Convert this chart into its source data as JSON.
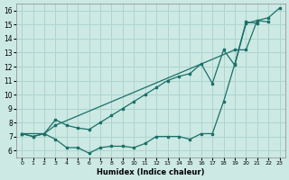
{
  "background_color": "#cce9e4",
  "grid_color": "#aed4ce",
  "line_color": "#1b7068",
  "xlabel": "Humidex (Indice chaleur)",
  "xlim": [
    -0.5,
    23.5
  ],
  "ylim": [
    5.5,
    16.5
  ],
  "xticks": [
    0,
    1,
    2,
    3,
    4,
    5,
    6,
    7,
    8,
    9,
    10,
    11,
    12,
    13,
    14,
    15,
    16,
    17,
    18,
    19,
    20,
    21,
    22,
    23
  ],
  "yticks": [
    6,
    7,
    8,
    9,
    10,
    11,
    12,
    13,
    14,
    15,
    16
  ],
  "line1_x": [
    0,
    1,
    2,
    3,
    4,
    5,
    6,
    7,
    8,
    9,
    10,
    11,
    12,
    13,
    14,
    15,
    16,
    17,
    18,
    19,
    20,
    21
  ],
  "line1_y": [
    7.2,
    7.0,
    7.2,
    6.8,
    6.2,
    6.2,
    5.8,
    6.2,
    6.3,
    6.3,
    6.2,
    6.5,
    7.0,
    7.0,
    7.0,
    6.8,
    7.2,
    7.2,
    9.5,
    12.2,
    15.2,
    15.1
  ],
  "line2_x": [
    0,
    1,
    2,
    3,
    4,
    5,
    6,
    7,
    8,
    9,
    10,
    11,
    12,
    13,
    14,
    15,
    16,
    17,
    18,
    19,
    20,
    21,
    22,
    23
  ],
  "line2_y": [
    7.2,
    7.0,
    7.2,
    8.2,
    7.8,
    7.6,
    7.5,
    8.0,
    8.5,
    9.0,
    9.5,
    10.0,
    10.5,
    11.0,
    11.3,
    11.5,
    12.2,
    10.8,
    13.2,
    12.1,
    15.1,
    15.3,
    15.2,
    null
  ],
  "line3_x": [
    0,
    2,
    3,
    19,
    20,
    21,
    22,
    23
  ],
  "line3_y": [
    7.2,
    7.2,
    7.8,
    13.2,
    13.2,
    15.3,
    15.5,
    16.2
  ]
}
